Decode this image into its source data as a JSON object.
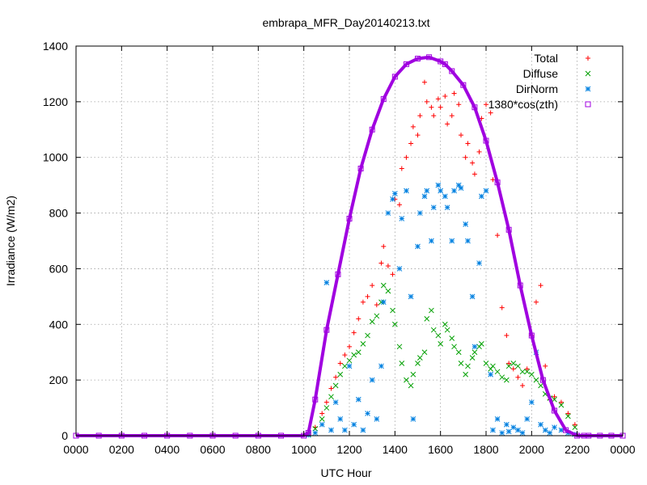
{
  "chart_data": {
    "type": "scatter",
    "title": "embrapa_MFR_Day20140213.txt",
    "xlabel": "UTC Hour",
    "ylabel": "Irradiance (W/m2)",
    "xlim": [
      0,
      24
    ],
    "ylim": [
      0,
      1400
    ],
    "x_ticks": [
      0,
      2,
      4,
      6,
      8,
      10,
      12,
      14,
      16,
      18,
      20,
      22,
      24
    ],
    "x_tick_labels": [
      "0000",
      "0200",
      "0400",
      "0600",
      "0800",
      "1000",
      "1200",
      "1400",
      "1600",
      "1800",
      "2000",
      "2200",
      "0000"
    ],
    "y_ticks": [
      0,
      200,
      400,
      600,
      800,
      1000,
      1200,
      1400
    ],
    "y_tick_labels": [
      "0",
      "200",
      "400",
      "600",
      "800",
      "1000",
      "1200",
      "1400"
    ],
    "grid": true,
    "legend_position": "top-right",
    "series": [
      {
        "name": "Total",
        "color": "#ff0000",
        "marker": "plus",
        "x": [
          10.2,
          10.5,
          10.8,
          11.0,
          11.2,
          11.4,
          11.6,
          11.8,
          12.0,
          12.2,
          12.4,
          12.6,
          12.8,
          13.0,
          13.2,
          13.4,
          13.5,
          13.7,
          13.9,
          14.0,
          14.2,
          14.3,
          14.5,
          14.7,
          14.8,
          15.0,
          15.1,
          15.3,
          15.4,
          15.6,
          15.7,
          15.9,
          16.0,
          16.2,
          16.3,
          16.5,
          16.6,
          16.8,
          16.9,
          17.1,
          17.2,
          17.4,
          17.5,
          17.7,
          17.8,
          18.0,
          18.2,
          18.3,
          18.5,
          18.7,
          18.9,
          19.0,
          19.2,
          19.4,
          19.6,
          19.8,
          20.0,
          20.2,
          20.4,
          20.6,
          20.8,
          21.0,
          21.3,
          21.6,
          21.9
        ],
        "y": [
          5,
          30,
          80,
          120,
          170,
          210,
          260,
          290,
          320,
          370,
          420,
          480,
          500,
          540,
          470,
          620,
          680,
          610,
          580,
          850,
          830,
          960,
          1000,
          1050,
          1110,
          1080,
          1150,
          1270,
          1200,
          1180,
          1150,
          1210,
          1180,
          1220,
          1120,
          1150,
          1230,
          1190,
          1080,
          1000,
          1050,
          980,
          940,
          1020,
          1140,
          1190,
          1160,
          920,
          720,
          460,
          360,
          260,
          240,
          210,
          180,
          240,
          360,
          480,
          540,
          250,
          130,
          140,
          120,
          80,
          40
        ]
      },
      {
        "name": "Diffuse",
        "color": "#00a000",
        "marker": "cross",
        "x": [
          10.2,
          10.5,
          10.8,
          11.0,
          11.2,
          11.4,
          11.6,
          11.8,
          12.0,
          12.2,
          12.4,
          12.6,
          12.8,
          13.0,
          13.2,
          13.4,
          13.5,
          13.7,
          13.9,
          14.0,
          14.2,
          14.3,
          14.5,
          14.7,
          14.8,
          15.0,
          15.1,
          15.3,
          15.4,
          15.6,
          15.7,
          15.9,
          16.0,
          16.2,
          16.3,
          16.5,
          16.6,
          16.8,
          16.9,
          17.1,
          17.2,
          17.4,
          17.5,
          17.7,
          17.8,
          18.0,
          18.2,
          18.3,
          18.5,
          18.7,
          18.9,
          19.0,
          19.2,
          19.4,
          19.6,
          19.8,
          20.0,
          20.2,
          20.4,
          20.6,
          20.8,
          21.0,
          21.3,
          21.6,
          21.9
        ],
        "y": [
          5,
          25,
          60,
          100,
          140,
          180,
          220,
          250,
          270,
          290,
          300,
          330,
          360,
          410,
          430,
          480,
          540,
          520,
          450,
          400,
          320,
          260,
          200,
          180,
          220,
          260,
          280,
          300,
          420,
          450,
          380,
          360,
          330,
          400,
          380,
          350,
          320,
          300,
          260,
          220,
          250,
          280,
          300,
          320,
          330,
          260,
          240,
          250,
          230,
          210,
          200,
          250,
          260,
          250,
          230,
          230,
          220,
          200,
          180,
          150,
          135,
          130,
          110,
          70,
          30
        ]
      },
      {
        "name": "DirNorm",
        "color": "#0080e0",
        "marker": "star",
        "x": [
          10.2,
          10.5,
          10.8,
          11.0,
          11.2,
          11.4,
          11.6,
          11.8,
          12.0,
          12.2,
          12.4,
          12.6,
          12.8,
          13.0,
          13.2,
          13.4,
          13.5,
          13.7,
          13.9,
          14.0,
          14.2,
          14.3,
          14.5,
          14.7,
          14.8,
          15.0,
          15.1,
          15.3,
          15.4,
          15.6,
          15.7,
          15.9,
          16.0,
          16.2,
          16.3,
          16.5,
          16.6,
          16.8,
          16.9,
          17.1,
          17.2,
          17.4,
          17.5,
          17.7,
          17.8,
          18.0,
          18.2,
          18.3,
          18.5,
          18.7,
          18.9,
          19.0,
          19.2,
          19.4,
          19.6,
          19.8,
          20.0,
          20.2,
          20.4,
          20.6,
          20.8,
          21.0,
          21.3,
          21.6,
          21.9
        ],
        "y": [
          2,
          10,
          40,
          550,
          20,
          120,
          60,
          20,
          250,
          40,
          130,
          20,
          80,
          200,
          60,
          250,
          480,
          800,
          850,
          870,
          600,
          780,
          880,
          500,
          60,
          680,
          800,
          860,
          880,
          700,
          820,
          900,
          880,
          860,
          820,
          700,
          880,
          900,
          890,
          760,
          700,
          500,
          320,
          620,
          860,
          880,
          220,
          20,
          60,
          10,
          40,
          15,
          30,
          20,
          10,
          60,
          120,
          300,
          40,
          20,
          10,
          30,
          20,
          10,
          5
        ]
      },
      {
        "name": "1380*cos(zth)",
        "color": "#a000e0",
        "marker": "square",
        "x": [
          0,
          1,
          2,
          3,
          4,
          5,
          6,
          7,
          8,
          9,
          10,
          10.2,
          10.5,
          11.0,
          11.5,
          12.0,
          12.5,
          13.0,
          13.5,
          14.0,
          14.5,
          15.0,
          15.5,
          16.0,
          16.2,
          16.5,
          17.0,
          17.5,
          18.0,
          18.5,
          19.0,
          19.5,
          20.0,
          20.5,
          21.0,
          21.5,
          22.0,
          22.3,
          22.5,
          23.0,
          23.5,
          24.0
        ],
        "y": [
          0,
          0,
          0,
          0,
          0,
          0,
          0,
          0,
          0,
          0,
          0,
          10,
          130,
          380,
          580,
          780,
          960,
          1100,
          1210,
          1290,
          1335,
          1355,
          1360,
          1345,
          1335,
          1310,
          1260,
          1180,
          1060,
          910,
          740,
          540,
          360,
          200,
          90,
          20,
          0,
          0,
          0,
          0,
          0,
          0
        ]
      }
    ]
  }
}
